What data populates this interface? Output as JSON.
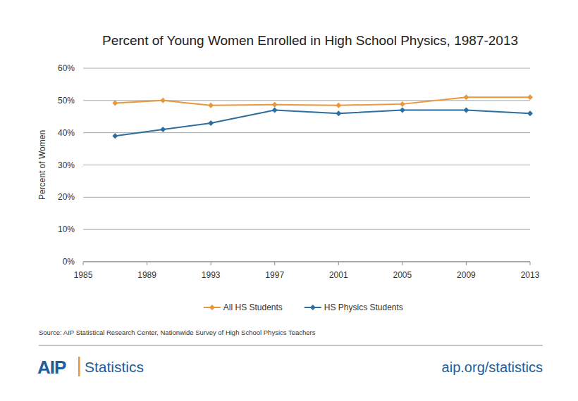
{
  "chart_data": {
    "type": "line",
    "title": "Percent of Young Women Enrolled in High School Physics, 1987-2013",
    "y_label": "Percent of Women",
    "source": "Source: AIP Statistical Research Center, Nationwide Survey of High School Physics Teachers",
    "x": [
      1987,
      1990,
      1993,
      1997,
      2001,
      2005,
      2009,
      2013
    ],
    "series": [
      {
        "name": "All HS Students",
        "color": "#E8973C",
        "values": [
          49.2,
          50,
          48.5,
          48.7,
          48.5,
          48.9,
          51,
          51
        ]
      },
      {
        "name": "HS Physics Students",
        "color": "#2C6E9E",
        "values": [
          39,
          41,
          43,
          47,
          46,
          47,
          47,
          46
        ]
      }
    ],
    "xlim": [
      1985,
      2013
    ],
    "xticks": [
      1985,
      1989,
      1993,
      1997,
      2001,
      2005,
      2009,
      2013
    ],
    "ylim": [
      0,
      60
    ],
    "yticks": [
      {
        "value": 0,
        "label": "0%"
      },
      {
        "value": 10,
        "label": "10%"
      },
      {
        "value": 20,
        "label": "20%"
      },
      {
        "value": 30,
        "label": "30%"
      },
      {
        "value": 40,
        "label": "40%"
      },
      {
        "value": 50,
        "label": "50%"
      },
      {
        "value": 60,
        "label": "60%"
      }
    ],
    "grid": true,
    "legend": "bottom",
    "marker": "diamond"
  },
  "footer": {
    "logo": "AIP",
    "logo_text": "Statistics",
    "url": "aip.org/statistics"
  }
}
